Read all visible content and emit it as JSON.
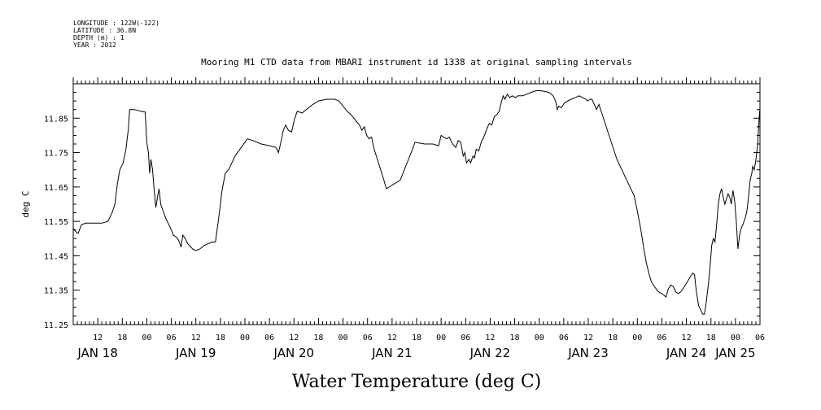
{
  "header": {
    "lines": [
      "LONGITUDE : 122W(-122)",
      "LATITUDE : 36.8N",
      "DEPTH (m) : 1",
      "YEAR : 2012"
    ]
  },
  "chart_data": {
    "type": "line",
    "title": "Mooring M1 CTD data from MBARI instrument id 1338 at original sampling intervals",
    "xlabel": "Water Temperature (deg C)",
    "ylabel": "deg C",
    "ylim": [
      11.25,
      11.95
    ],
    "yticks": [
      "11.25",
      "11.35",
      "11.45",
      "11.55",
      "11.65",
      "11.75",
      "11.85"
    ],
    "xlim_hours": [
      6,
      174
    ],
    "hour_ticks": [
      {
        "h": 12,
        "label": "12"
      },
      {
        "h": 18,
        "label": "18"
      },
      {
        "h": 24,
        "label": "00"
      },
      {
        "h": 30,
        "label": "06"
      },
      {
        "h": 36,
        "label": "12"
      },
      {
        "h": 42,
        "label": "18"
      },
      {
        "h": 48,
        "label": "00"
      },
      {
        "h": 54,
        "label": "06"
      },
      {
        "h": 60,
        "label": "12"
      },
      {
        "h": 66,
        "label": "18"
      },
      {
        "h": 72,
        "label": "00"
      },
      {
        "h": 78,
        "label": "06"
      },
      {
        "h": 84,
        "label": "12"
      },
      {
        "h": 90,
        "label": "18"
      },
      {
        "h": 96,
        "label": "00"
      },
      {
        "h": 102,
        "label": "06"
      },
      {
        "h": 108,
        "label": "12"
      },
      {
        "h": 114,
        "label": "18"
      },
      {
        "h": 120,
        "label": "00"
      },
      {
        "h": 126,
        "label": "06"
      },
      {
        "h": 132,
        "label": "12"
      },
      {
        "h": 138,
        "label": "18"
      },
      {
        "h": 144,
        "label": "00"
      },
      {
        "h": 150,
        "label": "06"
      },
      {
        "h": 156,
        "label": "12"
      },
      {
        "h": 162,
        "label": "18"
      },
      {
        "h": 168,
        "label": "00"
      },
      {
        "h": 174,
        "label": "06"
      }
    ],
    "day_labels": [
      {
        "h": 12,
        "label": "JAN 18"
      },
      {
        "h": 36,
        "label": "JAN 19"
      },
      {
        "h": 60,
        "label": "JAN 20"
      },
      {
        "h": 84,
        "label": "JAN 21"
      },
      {
        "h": 108,
        "label": "JAN 22"
      },
      {
        "h": 132,
        "label": "JAN 23"
      },
      {
        "h": 156,
        "label": "JAN 24"
      },
      {
        "h": 168,
        "label": "JAN 25"
      }
    ],
    "series": [
      {
        "points": [
          [
            6.0,
            11.53
          ],
          [
            6.6,
            11.52
          ],
          [
            7.2,
            11.515
          ],
          [
            8.0,
            11.54
          ],
          [
            9.0,
            11.545
          ],
          [
            11.0,
            11.545
          ],
          [
            13.0,
            11.545
          ],
          [
            14.5,
            11.55
          ],
          [
            15.5,
            11.575
          ],
          [
            16.2,
            11.6
          ],
          [
            16.8,
            11.66
          ],
          [
            17.4,
            11.7
          ],
          [
            18.2,
            11.72
          ],
          [
            18.9,
            11.76
          ],
          [
            19.5,
            11.82
          ],
          [
            19.8,
            11.875
          ],
          [
            21.0,
            11.875
          ],
          [
            22.6,
            11.87
          ],
          [
            23.6,
            11.868
          ],
          [
            24.0,
            11.78
          ],
          [
            24.4,
            11.75
          ],
          [
            24.7,
            11.69
          ],
          [
            25.0,
            11.73
          ],
          [
            25.4,
            11.7
          ],
          [
            25.8,
            11.64
          ],
          [
            26.2,
            11.59
          ],
          [
            26.6,
            11.62
          ],
          [
            27.0,
            11.645
          ],
          [
            27.4,
            11.6
          ],
          [
            28.0,
            11.58
          ],
          [
            28.6,
            11.56
          ],
          [
            29.2,
            11.545
          ],
          [
            29.8,
            11.53
          ],
          [
            30.5,
            11.51
          ],
          [
            31.2,
            11.505
          ],
          [
            31.8,
            11.495
          ],
          [
            32.4,
            11.475
          ],
          [
            32.8,
            11.51
          ],
          [
            33.4,
            11.5
          ],
          [
            34.0,
            11.485
          ],
          [
            35.2,
            11.47
          ],
          [
            36.0,
            11.465
          ],
          [
            37.0,
            11.47
          ],
          [
            38.0,
            11.48
          ],
          [
            39.0,
            11.485
          ],
          [
            40.0,
            11.49
          ],
          [
            40.8,
            11.49
          ],
          [
            41.6,
            11.56
          ],
          [
            42.4,
            11.64
          ],
          [
            43.2,
            11.69
          ],
          [
            44.0,
            11.7
          ],
          [
            44.8,
            11.72
          ],
          [
            45.6,
            11.74
          ],
          [
            46.8,
            11.76
          ],
          [
            48.0,
            11.78
          ],
          [
            48.6,
            11.79
          ],
          [
            50.0,
            11.785
          ],
          [
            52.0,
            11.775
          ],
          [
            54.0,
            11.77
          ],
          [
            55.6,
            11.765
          ],
          [
            56.2,
            11.75
          ],
          [
            56.8,
            11.78
          ],
          [
            57.4,
            11.815
          ],
          [
            58.0,
            11.83
          ],
          [
            58.6,
            11.815
          ],
          [
            59.4,
            11.81
          ],
          [
            60.2,
            11.85
          ],
          [
            60.8,
            11.87
          ],
          [
            62.0,
            11.865
          ],
          [
            63.0,
            11.875
          ],
          [
            64.6,
            11.89
          ],
          [
            66.0,
            11.9
          ],
          [
            68.0,
            11.905
          ],
          [
            70.0,
            11.905
          ],
          [
            71.0,
            11.9
          ],
          [
            72.0,
            11.885
          ],
          [
            73.0,
            11.87
          ],
          [
            74.0,
            11.86
          ],
          [
            75.0,
            11.845
          ],
          [
            76.0,
            11.83
          ],
          [
            76.6,
            11.815
          ],
          [
            77.2,
            11.825
          ],
          [
            77.8,
            11.8
          ],
          [
            78.4,
            11.79
          ],
          [
            79.0,
            11.795
          ],
          [
            79.6,
            11.76
          ],
          [
            80.4,
            11.73
          ],
          [
            81.2,
            11.7
          ],
          [
            82.0,
            11.67
          ],
          [
            82.6,
            11.645
          ],
          [
            86.0,
            11.67
          ],
          [
            87.0,
            11.7
          ],
          [
            88.0,
            11.73
          ],
          [
            89.0,
            11.76
          ],
          [
            89.6,
            11.78
          ],
          [
            92.0,
            11.775
          ],
          [
            94.0,
            11.775
          ],
          [
            95.4,
            11.77
          ],
          [
            96.0,
            11.8
          ],
          [
            96.6,
            11.795
          ],
          [
            97.4,
            11.79
          ],
          [
            98.0,
            11.795
          ],
          [
            98.8,
            11.775
          ],
          [
            99.6,
            11.765
          ],
          [
            100.2,
            11.785
          ],
          [
            100.8,
            11.78
          ],
          [
            101.4,
            11.74
          ],
          [
            101.8,
            11.75
          ],
          [
            102.2,
            11.72
          ],
          [
            102.8,
            11.73
          ],
          [
            103.2,
            11.72
          ],
          [
            103.8,
            11.74
          ],
          [
            104.2,
            11.735
          ],
          [
            104.6,
            11.76
          ],
          [
            105.2,
            11.755
          ],
          [
            105.8,
            11.78
          ],
          [
            106.6,
            11.8
          ],
          [
            107.2,
            11.82
          ],
          [
            107.8,
            11.835
          ],
          [
            108.4,
            11.83
          ],
          [
            109.0,
            11.855
          ],
          [
            109.6,
            11.86
          ],
          [
            110.2,
            11.87
          ],
          [
            110.8,
            11.9
          ],
          [
            111.2,
            11.915
          ],
          [
            111.6,
            11.905
          ],
          [
            112.2,
            11.92
          ],
          [
            112.8,
            11.91
          ],
          [
            113.4,
            11.915
          ],
          [
            114.2,
            11.91
          ],
          [
            114.8,
            11.915
          ],
          [
            116.0,
            11.915
          ],
          [
            117.0,
            11.92
          ],
          [
            118.0,
            11.925
          ],
          [
            119.2,
            11.93
          ],
          [
            120.2,
            11.93
          ],
          [
            121.2,
            11.928
          ],
          [
            122.4,
            11.925
          ],
          [
            123.4,
            11.915
          ],
          [
            124.0,
            11.9
          ],
          [
            124.4,
            11.875
          ],
          [
            124.8,
            11.885
          ],
          [
            125.4,
            11.88
          ],
          [
            126.2,
            11.895
          ],
          [
            127.0,
            11.9
          ],
          [
            127.8,
            11.905
          ],
          [
            128.8,
            11.91
          ],
          [
            129.8,
            11.915
          ],
          [
            130.6,
            11.91
          ],
          [
            131.4,
            11.905
          ],
          [
            131.8,
            11.9
          ],
          [
            132.4,
            11.905
          ],
          [
            132.9,
            11.905
          ],
          [
            133.5,
            11.89
          ],
          [
            134.0,
            11.875
          ],
          [
            134.6,
            11.89
          ],
          [
            139.0,
            11.73
          ],
          [
            143.2,
            11.625
          ],
          [
            144.0,
            11.58
          ],
          [
            144.8,
            11.53
          ],
          [
            145.6,
            11.47
          ],
          [
            146.2,
            11.43
          ],
          [
            146.8,
            11.4
          ],
          [
            147.4,
            11.375
          ],
          [
            148.2,
            11.36
          ],
          [
            149.2,
            11.345
          ],
          [
            150.0,
            11.34
          ],
          [
            150.6,
            11.335
          ],
          [
            151.0,
            11.33
          ],
          [
            151.6,
            11.355
          ],
          [
            152.2,
            11.365
          ],
          [
            152.8,
            11.36
          ],
          [
            153.4,
            11.345
          ],
          [
            154.0,
            11.34
          ],
          [
            154.6,
            11.345
          ],
          [
            155.2,
            11.355
          ],
          [
            156.0,
            11.37
          ],
          [
            157.0,
            11.39
          ],
          [
            157.6,
            11.4
          ],
          [
            158.0,
            11.395
          ],
          [
            158.4,
            11.35
          ],
          [
            159.0,
            11.305
          ],
          [
            159.6,
            11.29
          ],
          [
            160.0,
            11.28
          ],
          [
            160.4,
            11.28
          ],
          [
            160.8,
            11.31
          ],
          [
            161.4,
            11.37
          ],
          [
            161.8,
            11.42
          ],
          [
            162.2,
            11.48
          ],
          [
            162.6,
            11.5
          ],
          [
            163.0,
            11.49
          ],
          [
            163.4,
            11.54
          ],
          [
            163.8,
            11.6
          ],
          [
            164.2,
            11.63
          ],
          [
            164.6,
            11.645
          ],
          [
            165.0,
            11.62
          ],
          [
            165.4,
            11.6
          ],
          [
            165.8,
            11.615
          ],
          [
            166.2,
            11.63
          ],
          [
            166.6,
            11.62
          ],
          [
            167.0,
            11.6
          ],
          [
            167.4,
            11.64
          ],
          [
            167.8,
            11.61
          ],
          [
            168.2,
            11.55
          ],
          [
            168.6,
            11.47
          ],
          [
            169.0,
            11.51
          ],
          [
            169.4,
            11.53
          ],
          [
            169.8,
            11.54
          ],
          [
            170.4,
            11.56
          ],
          [
            170.8,
            11.58
          ],
          [
            171.2,
            11.62
          ],
          [
            171.6,
            11.67
          ],
          [
            172.0,
            11.69
          ],
          [
            172.2,
            11.71
          ],
          [
            172.6,
            11.7
          ],
          [
            173.0,
            11.73
          ],
          [
            173.4,
            11.77
          ],
          [
            173.8,
            11.85
          ],
          [
            174.0,
            11.88
          ]
        ]
      }
    ]
  }
}
